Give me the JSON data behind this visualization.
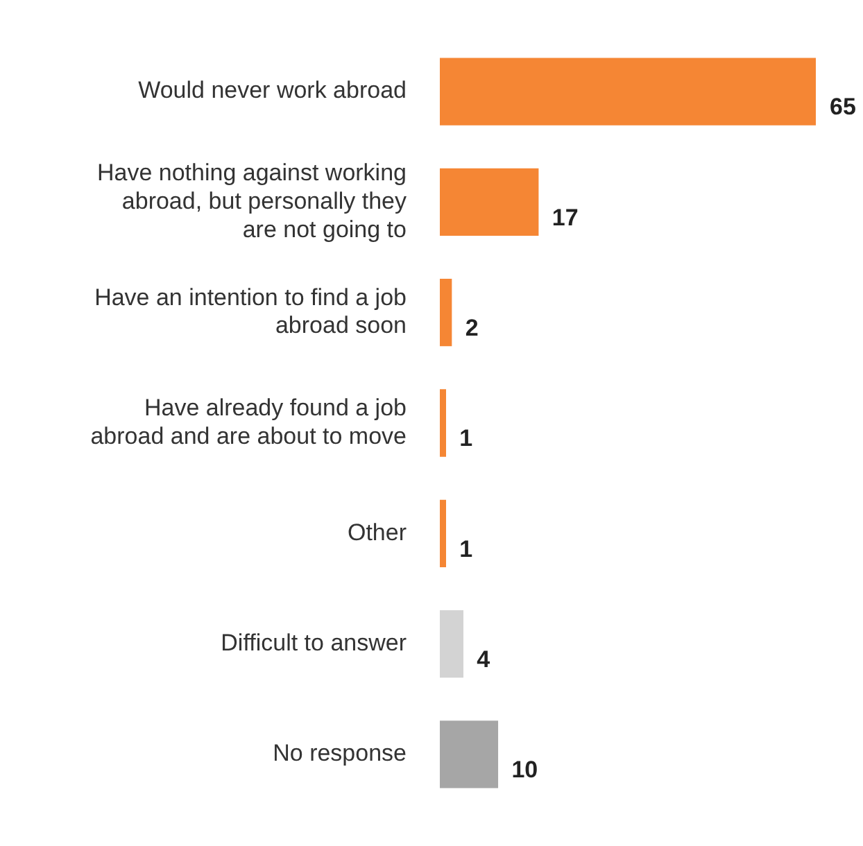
{
  "chart_data": {
    "type": "bar",
    "orientation": "horizontal",
    "data_labels": true,
    "grid": false,
    "legend": false,
    "categories": [
      "Would never work abroad",
      "Have nothing against working abroad, but personally they are not going to",
      "Have an intention to find a job abroad soon",
      "Have already found a job abroad and are about to move",
      "Other",
      "Difficult to answer",
      "No response"
    ],
    "values": [
      65,
      17,
      2,
      1,
      1,
      4,
      10
    ],
    "colors": [
      "#f58634",
      "#f58634",
      "#f58634",
      "#f58634",
      "#f58634",
      "#d3d3d3",
      "#a6a6a6"
    ]
  }
}
